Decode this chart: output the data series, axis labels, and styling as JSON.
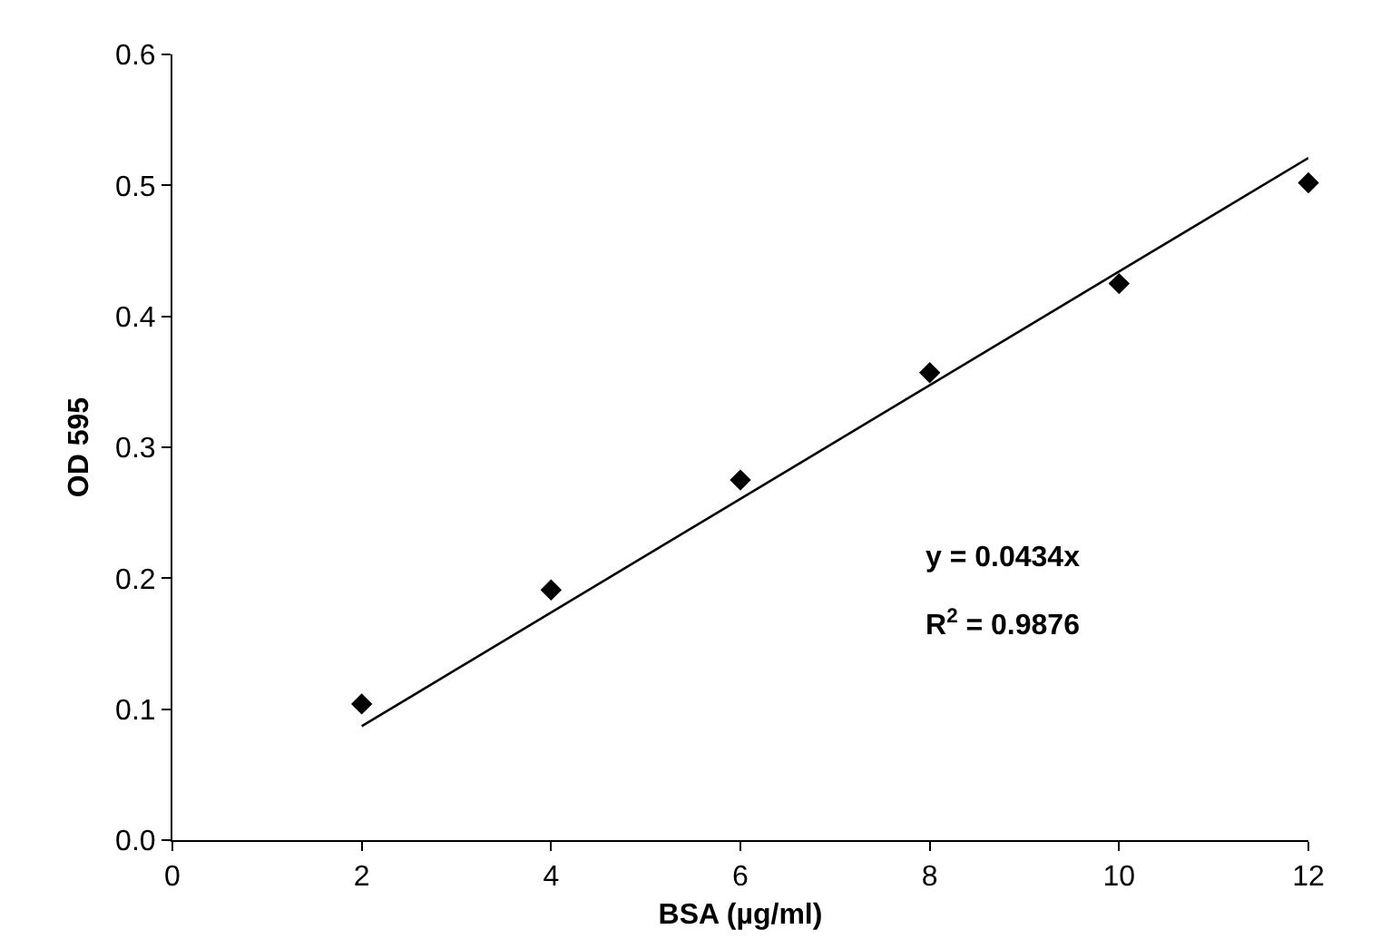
{
  "chart_data": {
    "type": "scatter",
    "xlabel": "BSA (µg/ml)",
    "ylabel": "OD 595",
    "x": [
      2,
      4,
      6,
      8,
      10,
      12
    ],
    "series": [
      {
        "color": "#000000",
        "values": [
          0.104,
          0.191,
          0.275,
          0.357,
          0.425,
          0.502
        ]
      },
      {
        "type": "line",
        "color": "#000000",
        "x": [
          2,
          12
        ],
        "values": [
          0.087,
          0.521
        ],
        "marker": "none",
        "line_style": "solid"
      }
    ],
    "annotations": [
      "y = 0.0434x",
      "R$^{2}$ = 0.9876"
    ],
    "marker": "diamond",
    "xlim": [
      0,
      12
    ],
    "xticks": [
      0,
      2,
      4,
      6,
      8,
      10,
      12
    ],
    "ylim": [
      0,
      0.6
    ],
    "yticks": [
      {
        "value": 0,
        "label": "0.0"
      },
      0.1,
      0.2,
      0.3,
      0.4,
      0.5,
      0.6
    ]
  }
}
